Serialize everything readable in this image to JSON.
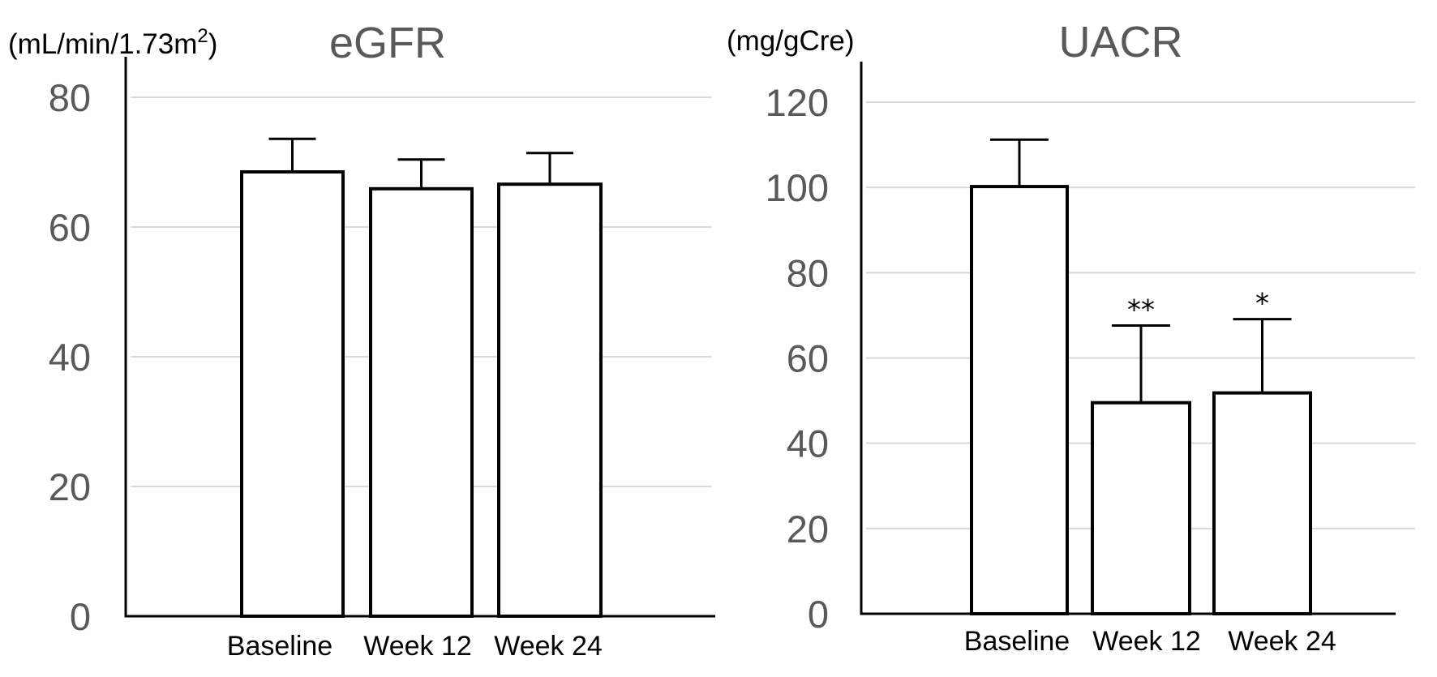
{
  "chart_data": [
    {
      "type": "bar",
      "title": "eGFR",
      "ylabel": "(mL/min/1.73m²)",
      "ylabel_base": "(mL/min/1.73m",
      "ylabel_sup": "2",
      "ylabel_close": ")",
      "xlabel": "",
      "ylim": [
        0,
        80
      ],
      "yticks": [
        0,
        20,
        40,
        60,
        80
      ],
      "grid": true,
      "categories": [
        "Baseline",
        "Week 12",
        "Week 24"
      ],
      "values": [
        68.5,
        65.9,
        66.6
      ],
      "error_upper": [
        73.6,
        70.4,
        71.4
      ],
      "significance": [
        "",
        "",
        ""
      ]
    },
    {
      "type": "bar",
      "title": "UACR",
      "ylabel": "(mg/gCre)",
      "xlabel": "",
      "ylim": [
        0,
        120
      ],
      "yticks": [
        0,
        20,
        40,
        60,
        80,
        100,
        120
      ],
      "grid": true,
      "categories": [
        "Baseline",
        "Week 12",
        "Week 24"
      ],
      "values": [
        100.2,
        49.5,
        51.8
      ],
      "error_upper": [
        111.2,
        67.6,
        69.1
      ],
      "significance": [
        "",
        "**",
        "*"
      ]
    }
  ]
}
